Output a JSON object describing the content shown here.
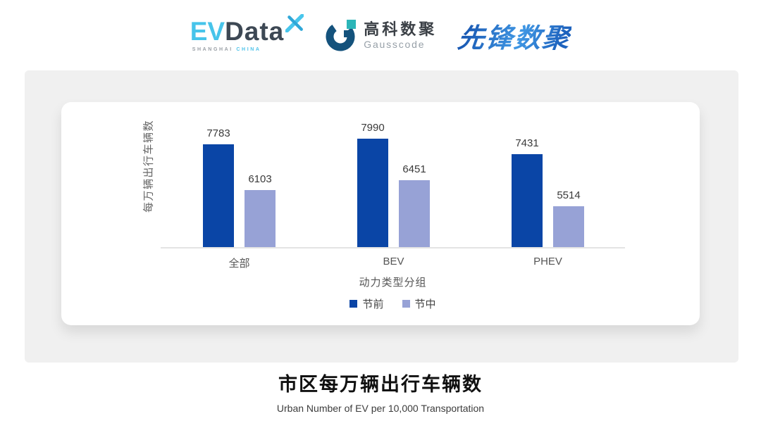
{
  "header": {
    "evdata_logo": {
      "ev": "EV",
      "data": "Data",
      "spark_icon": "x-spark",
      "tagline_left": "SHANGHAI",
      "tagline_right": "CHINA"
    },
    "gausscode_logo": {
      "icon": "g-ring",
      "cn": "高科数聚",
      "en": "Gausscode"
    },
    "pioneer_logo": {
      "text": "先锋数聚"
    }
  },
  "chart_data": {
    "type": "bar",
    "categories": [
      "全部",
      "BEV",
      "PHEV"
    ],
    "series": [
      {
        "name": "节前",
        "values": [
          7783,
          7990,
          7431
        ],
        "color": "#0A45A6"
      },
      {
        "name": "节中",
        "values": [
          6103,
          6451,
          5514
        ],
        "color": "#97A2D6"
      }
    ],
    "xlabel": "动力类型分组",
    "ylabel": "每万辆出行车辆数",
    "ylim": [
      4000,
      8200
    ],
    "grid": false,
    "legend_position": "bottom",
    "title": "市区每万辆出行车辆数",
    "subtitle": "Urban Number of EV per 10,000 Transportation"
  },
  "colors": {
    "pre_holiday": "#0A45A6",
    "mid_holiday": "#97A2D6",
    "panel_bg": "#F0F0F0",
    "axis_line": "#E4E4E4"
  }
}
